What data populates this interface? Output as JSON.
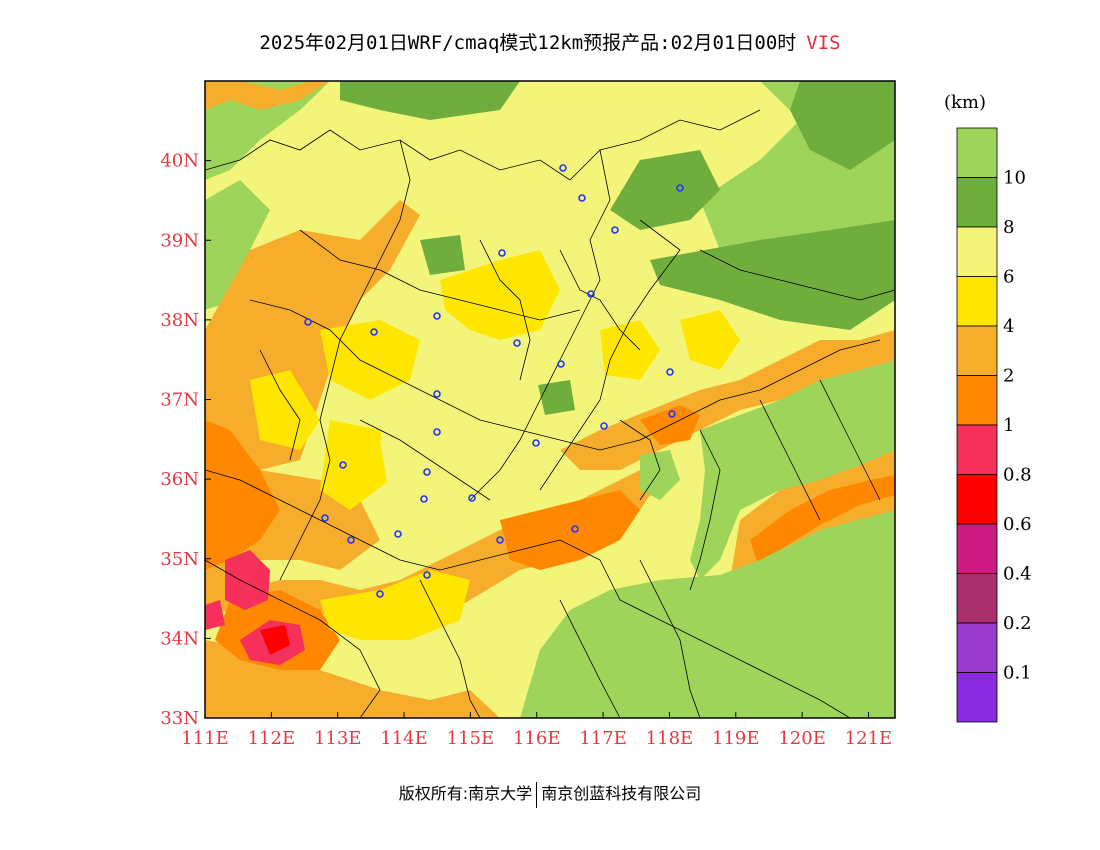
{
  "header": {
    "title": "2025年02月01日WRF/cmaq模式12km预报产品:02月01日00时",
    "variable": "VIS"
  },
  "map": {
    "lon_labels": [
      "111E",
      "112E",
      "113E",
      "114E",
      "115E",
      "116E",
      "117E",
      "118E",
      "119E",
      "120E",
      "121E"
    ],
    "lat_labels": [
      "33N",
      "34N",
      "35N",
      "36N",
      "37N",
      "38N",
      "39N",
      "40N"
    ],
    "lon_range": [
      111,
      121.4
    ],
    "lat_range": [
      33,
      41
    ],
    "field": "visibility",
    "land_color": "#92d050",
    "sea_color": "#92d050"
  },
  "colorbar": {
    "unit": "(km)",
    "colors": [
      "#9ed45a",
      "#6fae3c",
      "#f2f57a",
      "#ffe600",
      "#f7ad2c",
      "#ff8800",
      "#f5305a",
      "#ff0000",
      "#cc1a80",
      "#a8306a",
      "#9a3bd0",
      "#8a2be2"
    ],
    "labels": [
      "10",
      "8",
      "6",
      "4",
      "2",
      "1",
      "0.8",
      "0.6",
      "0.4",
      "0.2",
      "0.1"
    ]
  },
  "footer": {
    "left": "版权所有:南京大学",
    "right": "南京创蓝科技有限公司"
  }
}
